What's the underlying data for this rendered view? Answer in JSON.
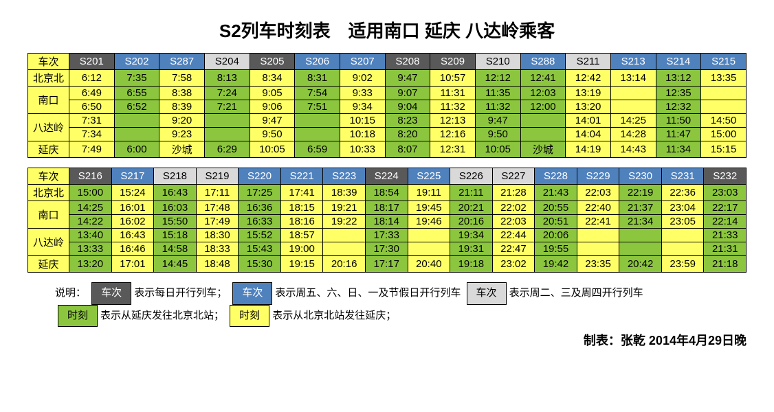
{
  "title": "S2列车时刻表　适用南口 延庆 八达岭乘客",
  "colors": {
    "yellow": "#ffff66",
    "green": "#8cc63f",
    "dark_header": "#595959",
    "blue_header": "#4f81bd",
    "light_header": "#d9d9d9",
    "header_text_light": "#ffffff",
    "header_text_dark": "#000000"
  },
  "row_labels": [
    "车次",
    "北京北",
    "南口",
    "南口",
    "八达岭",
    "八达岭",
    "延庆"
  ],
  "tables": [
    {
      "trains": [
        {
          "id": "S201",
          "ht": "dark"
        },
        {
          "id": "S202",
          "ht": "blue"
        },
        {
          "id": "S287",
          "ht": "blue"
        },
        {
          "id": "S204",
          "ht": "light"
        },
        {
          "id": "S205",
          "ht": "dark"
        },
        {
          "id": "S206",
          "ht": "blue"
        },
        {
          "id": "S207",
          "ht": "blue"
        },
        {
          "id": "S208",
          "ht": "dark"
        },
        {
          "id": "S209",
          "ht": "dark"
        },
        {
          "id": "S210",
          "ht": "light"
        },
        {
          "id": "S288",
          "ht": "blue"
        },
        {
          "id": "S211",
          "ht": "light"
        },
        {
          "id": "S213",
          "ht": "blue"
        },
        {
          "id": "S214",
          "ht": "blue"
        },
        {
          "id": "S215",
          "ht": "blue"
        }
      ],
      "rows": [
        [
          {
            "t": "6:12",
            "c": "yellow"
          },
          {
            "t": "7:35",
            "c": "green"
          },
          {
            "t": "7:58",
            "c": "yellow"
          },
          {
            "t": "8:13",
            "c": "green"
          },
          {
            "t": "8:34",
            "c": "yellow"
          },
          {
            "t": "8:31",
            "c": "green"
          },
          {
            "t": "9:02",
            "c": "yellow"
          },
          {
            "t": "9:47",
            "c": "green"
          },
          {
            "t": "10:57",
            "c": "yellow"
          },
          {
            "t": "12:12",
            "c": "green"
          },
          {
            "t": "12:41",
            "c": "green"
          },
          {
            "t": "12:42",
            "c": "yellow"
          },
          {
            "t": "13:14",
            "c": "yellow"
          },
          {
            "t": "13:12",
            "c": "green"
          },
          {
            "t": "13:35",
            "c": "yellow"
          }
        ],
        [
          {
            "t": "6:49",
            "c": "yellow"
          },
          {
            "t": "6:55",
            "c": "green"
          },
          {
            "t": "8:38",
            "c": "yellow"
          },
          {
            "t": "7:24",
            "c": "green"
          },
          {
            "t": "9:05",
            "c": "yellow"
          },
          {
            "t": "7:54",
            "c": "green"
          },
          {
            "t": "9:33",
            "c": "yellow"
          },
          {
            "t": "9:07",
            "c": "green"
          },
          {
            "t": "11:31",
            "c": "yellow"
          },
          {
            "t": "11:35",
            "c": "green"
          },
          {
            "t": "12:03",
            "c": "green"
          },
          {
            "t": "13:19",
            "c": "yellow"
          },
          {
            "t": "",
            "c": "yellow"
          },
          {
            "t": "12:35",
            "c": "green"
          },
          {
            "t": "",
            "c": "yellow"
          }
        ],
        [
          {
            "t": "6:50",
            "c": "yellow"
          },
          {
            "t": "6:52",
            "c": "green"
          },
          {
            "t": "8:39",
            "c": "yellow"
          },
          {
            "t": "7:21",
            "c": "green"
          },
          {
            "t": "9:06",
            "c": "yellow"
          },
          {
            "t": "7:51",
            "c": "green"
          },
          {
            "t": "9:34",
            "c": "yellow"
          },
          {
            "t": "9:04",
            "c": "green"
          },
          {
            "t": "11:32",
            "c": "yellow"
          },
          {
            "t": "11:32",
            "c": "green"
          },
          {
            "t": "12:00",
            "c": "green"
          },
          {
            "t": "13:20",
            "c": "yellow"
          },
          {
            "t": "",
            "c": "yellow"
          },
          {
            "t": "12:32",
            "c": "green"
          },
          {
            "t": "",
            "c": "yellow"
          }
        ],
        [
          {
            "t": "7:31",
            "c": "yellow"
          },
          {
            "t": "",
            "c": "green"
          },
          {
            "t": "9:20",
            "c": "yellow"
          },
          {
            "t": "",
            "c": "green"
          },
          {
            "t": "9:47",
            "c": "yellow"
          },
          {
            "t": "",
            "c": "green"
          },
          {
            "t": "10:15",
            "c": "yellow"
          },
          {
            "t": "8:23",
            "c": "green"
          },
          {
            "t": "12:13",
            "c": "yellow"
          },
          {
            "t": "9:47",
            "c": "green"
          },
          {
            "t": "",
            "c": "green"
          },
          {
            "t": "14:01",
            "c": "yellow"
          },
          {
            "t": "14:25",
            "c": "yellow"
          },
          {
            "t": "11:50",
            "c": "green"
          },
          {
            "t": "14:50",
            "c": "yellow"
          }
        ],
        [
          {
            "t": "7:34",
            "c": "yellow"
          },
          {
            "t": "",
            "c": "green"
          },
          {
            "t": "9:23",
            "c": "yellow"
          },
          {
            "t": "",
            "c": "green"
          },
          {
            "t": "9:50",
            "c": "yellow"
          },
          {
            "t": "",
            "c": "green"
          },
          {
            "t": "10:18",
            "c": "yellow"
          },
          {
            "t": "8:20",
            "c": "green"
          },
          {
            "t": "12:16",
            "c": "yellow"
          },
          {
            "t": "9:50",
            "c": "green"
          },
          {
            "t": "",
            "c": "green"
          },
          {
            "t": "14:04",
            "c": "yellow"
          },
          {
            "t": "14:28",
            "c": "yellow"
          },
          {
            "t": "11:47",
            "c": "green"
          },
          {
            "t": "15:00",
            "c": "yellow"
          }
        ],
        [
          {
            "t": "7:49",
            "c": "yellow"
          },
          {
            "t": "6:00",
            "c": "green"
          },
          {
            "t": "沙城",
            "c": "yellow"
          },
          {
            "t": "6:29",
            "c": "green"
          },
          {
            "t": "10:05",
            "c": "yellow"
          },
          {
            "t": "6:59",
            "c": "green"
          },
          {
            "t": "10:33",
            "c": "yellow"
          },
          {
            "t": "8:07",
            "c": "green"
          },
          {
            "t": "12:31",
            "c": "yellow"
          },
          {
            "t": "10:05",
            "c": "green"
          },
          {
            "t": "沙城",
            "c": "green"
          },
          {
            "t": "14:19",
            "c": "yellow"
          },
          {
            "t": "14:43",
            "c": "yellow"
          },
          {
            "t": "11:34",
            "c": "green"
          },
          {
            "t": "15:15",
            "c": "yellow"
          }
        ]
      ]
    },
    {
      "trains": [
        {
          "id": "S216",
          "ht": "dark"
        },
        {
          "id": "S217",
          "ht": "blue"
        },
        {
          "id": "S218",
          "ht": "light"
        },
        {
          "id": "S219",
          "ht": "light"
        },
        {
          "id": "S220",
          "ht": "blue"
        },
        {
          "id": "S221",
          "ht": "blue"
        },
        {
          "id": "S223",
          "ht": "blue"
        },
        {
          "id": "S224",
          "ht": "dark"
        },
        {
          "id": "S225",
          "ht": "blue"
        },
        {
          "id": "S226",
          "ht": "light"
        },
        {
          "id": "S227",
          "ht": "light"
        },
        {
          "id": "S228",
          "ht": "blue"
        },
        {
          "id": "S229",
          "ht": "blue"
        },
        {
          "id": "S230",
          "ht": "blue"
        },
        {
          "id": "S231",
          "ht": "blue"
        },
        {
          "id": "S232",
          "ht": "dark"
        }
      ],
      "rows": [
        [
          {
            "t": "15:00",
            "c": "green"
          },
          {
            "t": "15:24",
            "c": "yellow"
          },
          {
            "t": "16:43",
            "c": "green"
          },
          {
            "t": "17:11",
            "c": "yellow"
          },
          {
            "t": "17:25",
            "c": "green"
          },
          {
            "t": "17:41",
            "c": "yellow"
          },
          {
            "t": "18:39",
            "c": "yellow"
          },
          {
            "t": "18:54",
            "c": "green"
          },
          {
            "t": "19:11",
            "c": "yellow"
          },
          {
            "t": "21:11",
            "c": "green"
          },
          {
            "t": "21:28",
            "c": "yellow"
          },
          {
            "t": "21:43",
            "c": "green"
          },
          {
            "t": "22:03",
            "c": "yellow"
          },
          {
            "t": "22:19",
            "c": "green"
          },
          {
            "t": "22:36",
            "c": "yellow"
          },
          {
            "t": "23:03",
            "c": "green"
          }
        ],
        [
          {
            "t": "14:25",
            "c": "green"
          },
          {
            "t": "16:01",
            "c": "yellow"
          },
          {
            "t": "16:03",
            "c": "green"
          },
          {
            "t": "17:48",
            "c": "yellow"
          },
          {
            "t": "16:36",
            "c": "green"
          },
          {
            "t": "18:15",
            "c": "yellow"
          },
          {
            "t": "19:21",
            "c": "yellow"
          },
          {
            "t": "18:17",
            "c": "green"
          },
          {
            "t": "19:45",
            "c": "yellow"
          },
          {
            "t": "20:21",
            "c": "green"
          },
          {
            "t": "22:02",
            "c": "yellow"
          },
          {
            "t": "20:55",
            "c": "green"
          },
          {
            "t": "22:40",
            "c": "yellow"
          },
          {
            "t": "21:37",
            "c": "green"
          },
          {
            "t": "23:04",
            "c": "yellow"
          },
          {
            "t": "22:17",
            "c": "green"
          }
        ],
        [
          {
            "t": "14:22",
            "c": "green"
          },
          {
            "t": "16:02",
            "c": "yellow"
          },
          {
            "t": "15:50",
            "c": "green"
          },
          {
            "t": "17:49",
            "c": "yellow"
          },
          {
            "t": "16:33",
            "c": "green"
          },
          {
            "t": "18:16",
            "c": "yellow"
          },
          {
            "t": "19:22",
            "c": "yellow"
          },
          {
            "t": "18:14",
            "c": "green"
          },
          {
            "t": "19:46",
            "c": "yellow"
          },
          {
            "t": "20:16",
            "c": "green"
          },
          {
            "t": "22:03",
            "c": "yellow"
          },
          {
            "t": "20:51",
            "c": "green"
          },
          {
            "t": "22:41",
            "c": "yellow"
          },
          {
            "t": "21:34",
            "c": "green"
          },
          {
            "t": "23:05",
            "c": "yellow"
          },
          {
            "t": "22:14",
            "c": "green"
          }
        ],
        [
          {
            "t": "13:40",
            "c": "green"
          },
          {
            "t": "16:43",
            "c": "yellow"
          },
          {
            "t": "15:18",
            "c": "green"
          },
          {
            "t": "18:30",
            "c": "yellow"
          },
          {
            "t": "15:52",
            "c": "green"
          },
          {
            "t": "18:57",
            "c": "yellow"
          },
          {
            "t": "",
            "c": "yellow"
          },
          {
            "t": "17:33",
            "c": "green"
          },
          {
            "t": "",
            "c": "yellow"
          },
          {
            "t": "19:34",
            "c": "green"
          },
          {
            "t": "22:44",
            "c": "yellow"
          },
          {
            "t": "20:06",
            "c": "green"
          },
          {
            "t": "",
            "c": "yellow"
          },
          {
            "t": "",
            "c": "green"
          },
          {
            "t": "",
            "c": "yellow"
          },
          {
            "t": "21:33",
            "c": "green"
          }
        ],
        [
          {
            "t": "13:33",
            "c": "green"
          },
          {
            "t": "16:46",
            "c": "yellow"
          },
          {
            "t": "14:58",
            "c": "green"
          },
          {
            "t": "18:33",
            "c": "yellow"
          },
          {
            "t": "15:43",
            "c": "green"
          },
          {
            "t": "19:00",
            "c": "yellow"
          },
          {
            "t": "",
            "c": "yellow"
          },
          {
            "t": "17:30",
            "c": "green"
          },
          {
            "t": "",
            "c": "yellow"
          },
          {
            "t": "19:31",
            "c": "green"
          },
          {
            "t": "22:47",
            "c": "yellow"
          },
          {
            "t": "19:55",
            "c": "green"
          },
          {
            "t": "",
            "c": "yellow"
          },
          {
            "t": "",
            "c": "green"
          },
          {
            "t": "",
            "c": "yellow"
          },
          {
            "t": "21:31",
            "c": "green"
          }
        ],
        [
          {
            "t": "13:20",
            "c": "green"
          },
          {
            "t": "17:01",
            "c": "yellow"
          },
          {
            "t": "14:45",
            "c": "green"
          },
          {
            "t": "18:48",
            "c": "yellow"
          },
          {
            "t": "15:30",
            "c": "green"
          },
          {
            "t": "19:15",
            "c": "yellow"
          },
          {
            "t": "20:16",
            "c": "yellow"
          },
          {
            "t": "17:17",
            "c": "green"
          },
          {
            "t": "20:40",
            "c": "yellow"
          },
          {
            "t": "19:18",
            "c": "green"
          },
          {
            "t": "23:02",
            "c": "yellow"
          },
          {
            "t": "19:42",
            "c": "green"
          },
          {
            "t": "23:35",
            "c": "yellow"
          },
          {
            "t": "20:42",
            "c": "green"
          },
          {
            "t": "23:59",
            "c": "yellow"
          },
          {
            "t": "21:18",
            "c": "green"
          }
        ]
      ]
    }
  ],
  "legend": {
    "intro": "说明：",
    "items": [
      {
        "chip": "车次",
        "bg": "dark",
        "text": "表示每日开行列车；"
      },
      {
        "chip": "车次",
        "bg": "blue",
        "text": "表示周五、六、日、一及节假日开行列车"
      },
      {
        "chip": "车次",
        "bg": "light",
        "text": "表示周二、三及周四开行列车"
      },
      {
        "chip": "时刻",
        "bg": "green",
        "text": "表示从延庆发往北京北站；"
      },
      {
        "chip": "时刻",
        "bg": "yellow",
        "text": "表示从北京北站发往延庆；"
      }
    ]
  },
  "credit": "制表：张乾  2014年4月29日晚"
}
